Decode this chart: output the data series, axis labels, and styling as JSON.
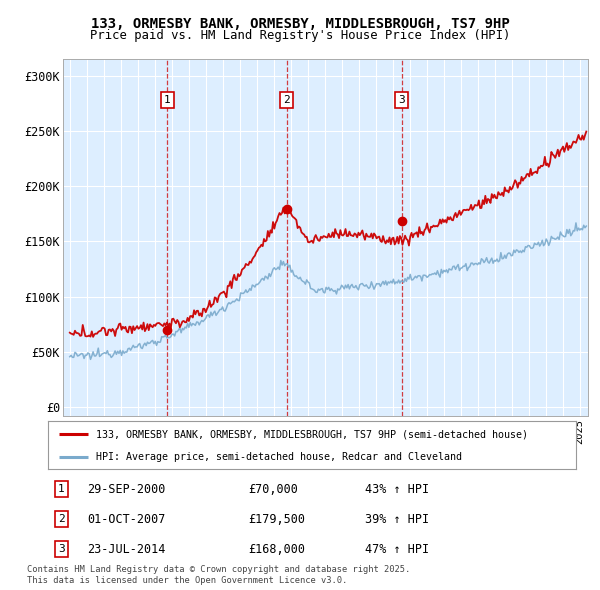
{
  "title_line1": "133, ORMESBY BANK, ORMESBY, MIDDLESBROUGH, TS7 9HP",
  "title_line2": "Price paid vs. HM Land Registry's House Price Index (HPI)",
  "yticks": [
    0,
    50000,
    100000,
    150000,
    200000,
    250000,
    300000
  ],
  "ytick_labels": [
    "£0",
    "£50K",
    "£100K",
    "£150K",
    "£200K",
    "£250K",
    "£300K"
  ],
  "ylim": [
    -8000,
    315000
  ],
  "xlim_start": 1994.6,
  "xlim_end": 2025.5,
  "purchase_dates": [
    2000.75,
    2007.77,
    2014.55
  ],
  "purchase_prices": [
    70000,
    179500,
    168000
  ],
  "purchase_labels": [
    "1",
    "2",
    "3"
  ],
  "purchase_date_strs": [
    "29-SEP-2000",
    "01-OCT-2007",
    "23-JUL-2014"
  ],
  "purchase_price_strs": [
    "£70,000",
    "£179,500",
    "£168,000"
  ],
  "purchase_hpi_strs": [
    "43% ↑ HPI",
    "39% ↑ HPI",
    "47% ↑ HPI"
  ],
  "line1_label": "133, ORMESBY BANK, ORMESBY, MIDDLESBROUGH, TS7 9HP (semi-detached house)",
  "line2_label": "HPI: Average price, semi-detached house, Redcar and Cleveland",
  "footer": "Contains HM Land Registry data © Crown copyright and database right 2025.\nThis data is licensed under the Open Government Licence v3.0.",
  "red_color": "#cc0000",
  "blue_color": "#7aaacc",
  "chart_bg": "#ddeeff",
  "grid_color": "#ffffff",
  "fig_bg": "#ffffff"
}
